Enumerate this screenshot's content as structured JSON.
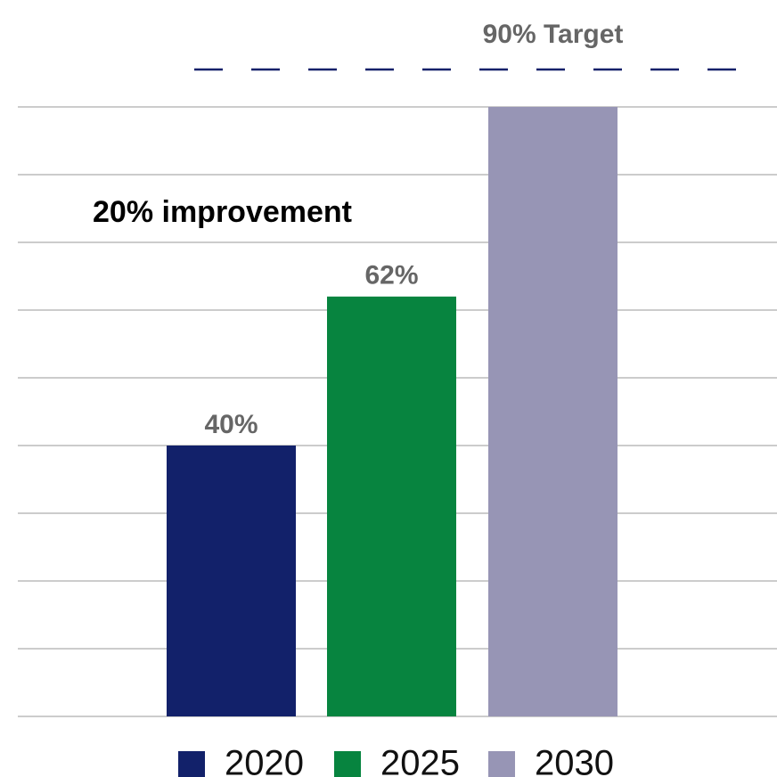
{
  "chart_data": {
    "type": "bar",
    "categories": [
      "2020",
      "2025",
      "2030"
    ],
    "values": [
      40,
      62,
      90
    ],
    "value_labels": [
      "40%",
      "62%",
      "90% Target"
    ],
    "colors": [
      "#12216a",
      "#07843f",
      "#9795b5"
    ],
    "annotation": "20% improvement",
    "ylim": [
      0,
      100
    ],
    "yticks": [
      0,
      10,
      20,
      30,
      40,
      50,
      60,
      70,
      80,
      90
    ],
    "grid": true,
    "legend": "bottom"
  }
}
